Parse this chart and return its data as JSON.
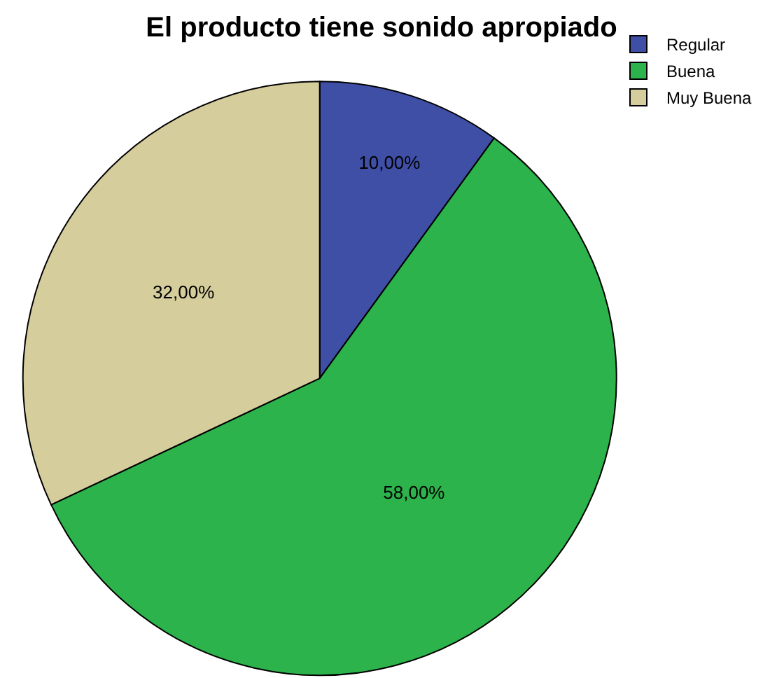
{
  "chart_data": {
    "type": "pie",
    "title": "El producto tiene sonido apropiado",
    "categories": [
      "Regular",
      "Buena",
      "Muy Buena"
    ],
    "values": [
      10,
      58,
      32
    ],
    "colors": [
      "#3f4fa6",
      "#2db34b",
      "#d6cd9c"
    ],
    "value_labels": [
      "10,00%",
      "58,00%",
      "32,00%"
    ],
    "legend": "top right"
  }
}
